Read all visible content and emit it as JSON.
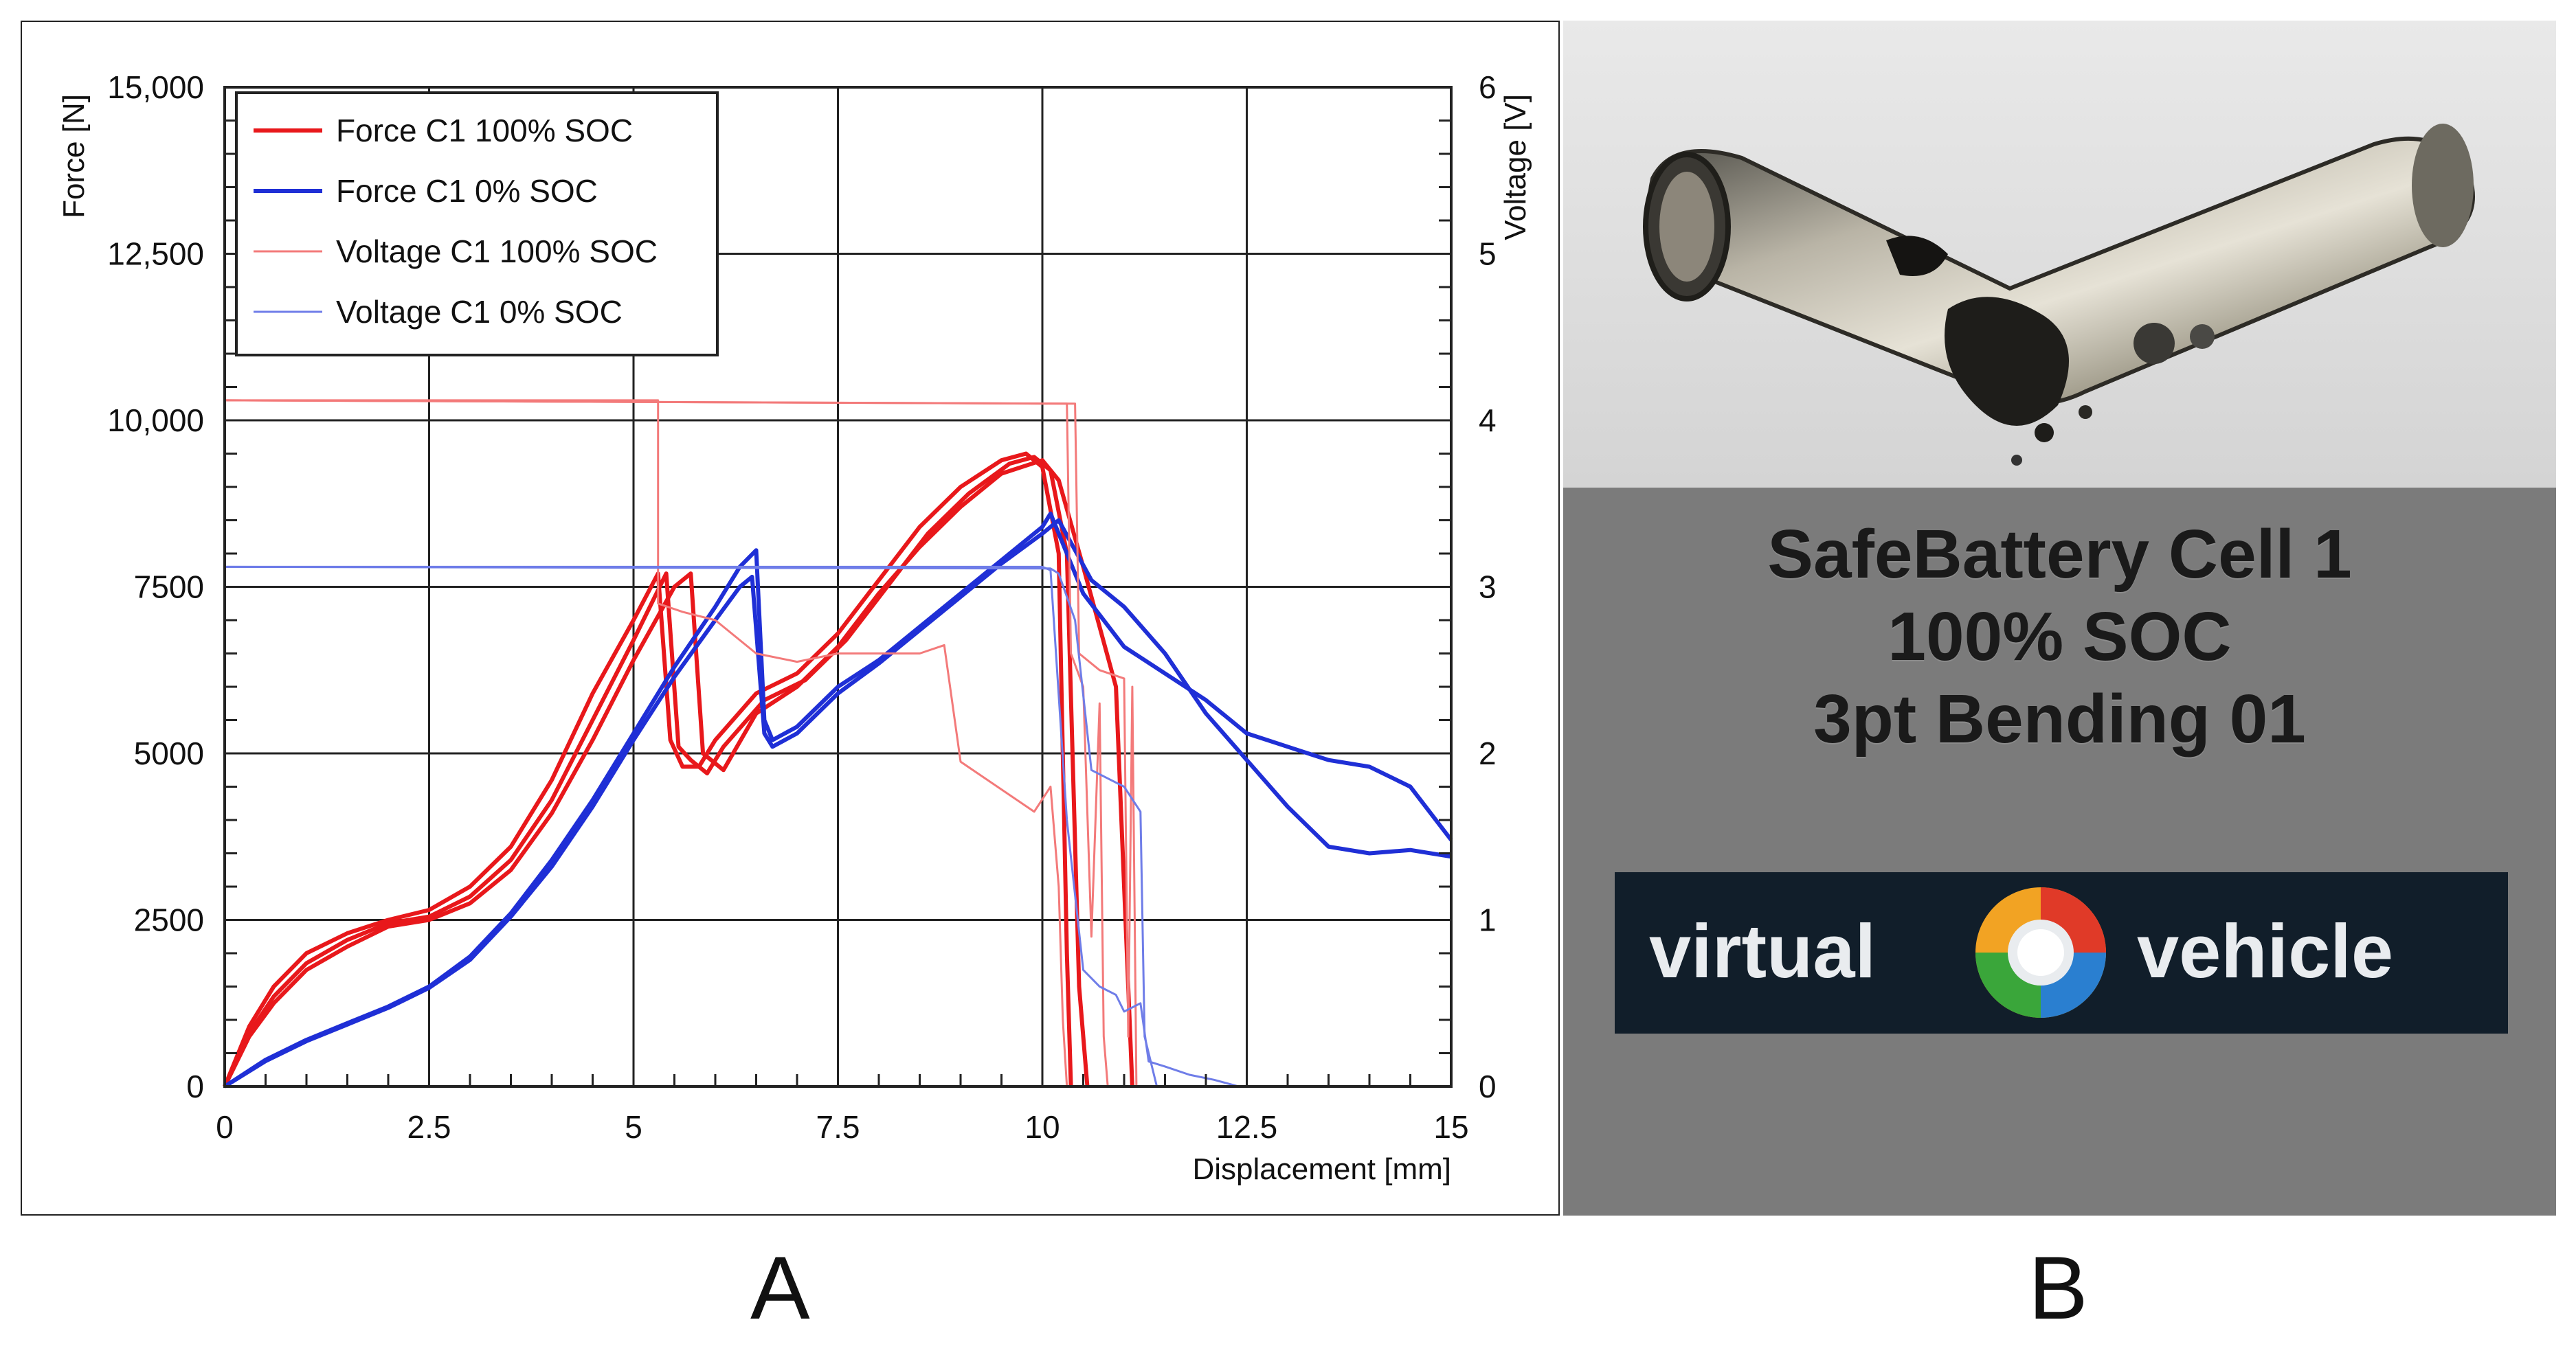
{
  "panel_labels": [
    "A",
    "B"
  ],
  "chart_data": {
    "type": "line",
    "title": "",
    "xlabel": "Displacement [mm]",
    "ylabel": "Force [N]",
    "y2label": "Voltage [V]",
    "xlim": [
      0,
      15
    ],
    "ylim": [
      0,
      15000
    ],
    "y2lim": [
      0,
      6
    ],
    "xticks": [
      0,
      2.5,
      5,
      7.5,
      10,
      12.5,
      15
    ],
    "xtick_labels": [
      "0",
      "2.5",
      "5",
      "7.5",
      "10",
      "12.5",
      "15"
    ],
    "yticks": [
      0,
      2500,
      5000,
      7500,
      10000,
      12500,
      15000
    ],
    "ytick_labels": [
      "0",
      "2500",
      "5000",
      "7500",
      "10,000",
      "12,500",
      "15,000"
    ],
    "y2ticks": [
      0,
      1,
      2,
      3,
      4,
      5,
      6
    ],
    "y2tick_labels": [
      "0",
      "1",
      "2",
      "3",
      "4",
      "5",
      "6"
    ],
    "grid": true,
    "legend_position": "top-left",
    "colors": {
      "red": "#e8181b",
      "light_red": "#f37a7a",
      "blue": "#1f2fd6",
      "light_blue": "#6f7de8"
    },
    "series": [
      {
        "name": "Force C1 100% SOC",
        "axis": "left",
        "color": "#e8181b",
        "width": 6,
        "legend": true,
        "x": [
          0,
          0.3,
          0.6,
          1.0,
          1.5,
          2.0,
          2.5,
          3.0,
          3.5,
          4.0,
          4.5,
          5.0,
          5.3,
          5.45,
          5.6,
          5.8,
          6.0,
          6.5,
          7.0,
          7.5,
          8.0,
          8.5,
          9.0,
          9.5,
          9.8,
          10.0,
          10.2,
          10.3,
          10.35
        ],
        "y": [
          0,
          900,
          1500,
          2000,
          2300,
          2500,
          2650,
          3000,
          3600,
          4600,
          5900,
          7000,
          7700,
          5200,
          4800,
          4800,
          5200,
          5900,
          6200,
          6800,
          7600,
          8400,
          9000,
          9400,
          9500,
          9300,
          8000,
          2000,
          0
        ]
      },
      {
        "name": "",
        "axis": "left",
        "color": "#e8181b",
        "width": 6,
        "legend": false,
        "x": [
          0,
          0.3,
          0.6,
          1.0,
          1.5,
          2.0,
          2.5,
          3.0,
          3.5,
          4.0,
          4.5,
          5.0,
          5.4,
          5.55,
          5.7,
          5.9,
          6.1,
          6.6,
          7.1,
          7.6,
          8.1,
          8.6,
          9.1,
          9.6,
          9.9,
          10.1,
          10.3,
          10.45,
          10.55
        ],
        "y": [
          0,
          800,
          1350,
          1850,
          2200,
          2450,
          2550,
          2850,
          3400,
          4300,
          5500,
          6700,
          7700,
          5100,
          4900,
          4700,
          5100,
          5800,
          6100,
          6700,
          7500,
          8300,
          8900,
          9350,
          9450,
          9250,
          8000,
          1500,
          0
        ]
      },
      {
        "name": "",
        "axis": "left",
        "color": "#e8181b",
        "width": 6,
        "legend": false,
        "x": [
          0,
          0.3,
          0.6,
          1.0,
          1.5,
          2.0,
          2.5,
          3.0,
          3.5,
          4.0,
          4.5,
          5.0,
          5.5,
          5.7,
          5.85,
          6.1,
          6.5,
          7.0,
          7.5,
          8.0,
          8.5,
          9.0,
          9.5,
          10.0,
          10.2,
          10.5,
          10.9,
          11.0,
          11.1
        ],
        "y": [
          0,
          750,
          1250,
          1750,
          2100,
          2400,
          2500,
          2750,
          3250,
          4100,
          5200,
          6400,
          7500,
          7700,
          5000,
          4750,
          5600,
          6000,
          6600,
          7400,
          8100,
          8700,
          9200,
          9400,
          9100,
          7800,
          6000,
          3000,
          0
        ]
      },
      {
        "name": "Force C1 0% SOC",
        "axis": "left",
        "color": "#1f2fd6",
        "width": 6,
        "legend": true,
        "x": [
          0,
          0.5,
          1.0,
          1.5,
          2.0,
          2.5,
          3.0,
          3.5,
          4.0,
          4.5,
          5.0,
          5.5,
          6.0,
          6.3,
          6.5,
          6.6,
          6.7,
          7.0,
          7.5,
          8.0,
          8.5,
          9.0,
          9.5,
          10.0,
          10.1,
          10.5,
          11.0,
          11.5,
          12.0,
          12.5,
          13.0,
          13.5,
          14.0,
          14.5,
          15.0
        ],
        "y": [
          0,
          400,
          700,
          950,
          1200,
          1500,
          1950,
          2600,
          3400,
          4300,
          5300,
          6300,
          7200,
          7800,
          8050,
          5500,
          5200,
          5400,
          6000,
          6400,
          6900,
          7400,
          7900,
          8400,
          8600,
          7400,
          6600,
          6200,
          5800,
          5300,
          5100,
          4900,
          4800,
          4500,
          3700
        ]
      },
      {
        "name": "",
        "axis": "left",
        "color": "#1f2fd6",
        "width": 6,
        "legend": false,
        "x": [
          0,
          0.5,
          1.0,
          1.5,
          2.0,
          2.5,
          3.0,
          3.5,
          4.0,
          4.5,
          5.0,
          5.5,
          6.0,
          6.3,
          6.45,
          6.6,
          6.7,
          7.0,
          7.5,
          8.0,
          8.5,
          9.0,
          9.5,
          10.0,
          10.2,
          10.6,
          11.0,
          11.5,
          12.0,
          12.5,
          13.0,
          13.5,
          14.0,
          14.5,
          15.0
        ],
        "y": [
          0,
          380,
          680,
          930,
          1180,
          1480,
          1900,
          2550,
          3300,
          4200,
          5200,
          6150,
          7000,
          7500,
          7650,
          5300,
          5100,
          5300,
          5900,
          6350,
          6850,
          7350,
          7850,
          8300,
          8500,
          7600,
          7200,
          6500,
          5600,
          4900,
          4200,
          3600,
          3500,
          3550,
          3450
        ]
      },
      {
        "name": "Voltage C1 100% SOC",
        "axis": "right",
        "color": "#f37a7a",
        "width": 3,
        "legend": true,
        "x": [
          0,
          5.3,
          5.3,
          5.6,
          6.0,
          6.5,
          7.0,
          7.5,
          8.0,
          8.5,
          8.8,
          8.9,
          9.0,
          9.3,
          9.6,
          9.9,
          10.1,
          10.2,
          10.25,
          10.3
        ],
        "y": [
          4.12,
          4.12,
          2.9,
          2.85,
          2.8,
          2.6,
          2.55,
          2.6,
          2.6,
          2.6,
          2.65,
          2.3,
          1.95,
          1.85,
          1.75,
          1.65,
          1.8,
          1.2,
          0.4,
          0
        ]
      },
      {
        "name": "",
        "axis": "right",
        "color": "#f37a7a",
        "width": 3,
        "legend": false,
        "x": [
          0,
          10.3,
          10.35,
          10.5,
          10.6,
          10.7,
          10.75,
          10.8
        ],
        "y": [
          4.12,
          4.1,
          2.6,
          2.4,
          0.9,
          2.3,
          0.3,
          0
        ]
      },
      {
        "name": "",
        "axis": "right",
        "color": "#f37a7a",
        "width": 3,
        "legend": false,
        "x": [
          0,
          10.4,
          10.45,
          10.7,
          11.0,
          11.05,
          11.1,
          11.15
        ],
        "y": [
          4.12,
          4.1,
          2.6,
          2.5,
          2.45,
          0.3,
          2.4,
          0
        ]
      },
      {
        "name": "Voltage C1 0% SOC",
        "axis": "right",
        "color": "#6f7de8",
        "width": 3,
        "legend": true,
        "x": [
          0,
          10.0,
          10.1,
          10.3,
          10.5,
          10.7,
          10.9,
          11.0,
          11.2,
          11.3,
          11.5,
          11.8,
          12.1,
          12.4
        ],
        "y": [
          3.12,
          3.12,
          3.1,
          1.6,
          0.7,
          0.6,
          0.55,
          0.45,
          0.5,
          0.15,
          0.12,
          0.07,
          0.04,
          0
        ]
      },
      {
        "name": "",
        "axis": "right",
        "color": "#6f7de8",
        "width": 3,
        "legend": false,
        "x": [
          0,
          10.1,
          10.2,
          10.4,
          10.6,
          10.8,
          11.0,
          11.2,
          11.25,
          11.4
        ],
        "y": [
          3.12,
          3.11,
          3.08,
          2.8,
          1.9,
          1.85,
          1.8,
          1.65,
          0.3,
          0.0
        ]
      }
    ]
  },
  "photo": {
    "label_lines": [
      "SafeBattery Cell 1",
      "100% SOC",
      "3pt Bending 01"
    ],
    "logo_word_left": "virtual",
    "logo_word_right": "vehicle",
    "logo_colors": [
      "#e03a28",
      "#2a7fd0",
      "#3aa63a",
      "#f2a323"
    ]
  }
}
